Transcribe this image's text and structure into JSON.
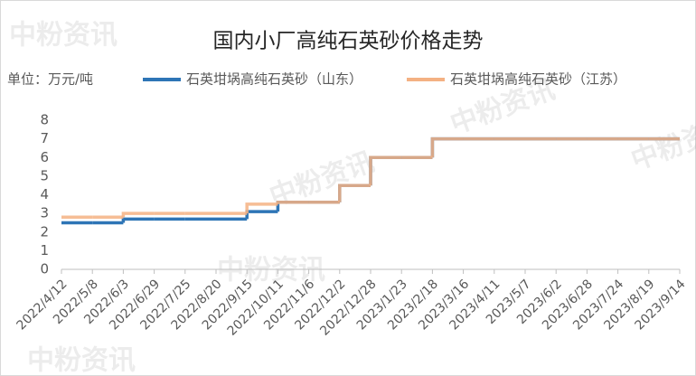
{
  "chart_data": {
    "type": "step-line",
    "title": "国内小厂高纯石英砂价格走势",
    "unit_label": "单位：万元/吨",
    "watermark": "中粉资讯",
    "categories": [
      "2022/4/12",
      "2022/5/8",
      "2022/6/3",
      "2022/6/29",
      "2022/7/25",
      "2022/8/20",
      "2022/9/15",
      "2022/10/11",
      "2022/11/6",
      "2022/12/2",
      "2022/12/28",
      "2023/1/23",
      "2023/2/18",
      "2023/3/16",
      "2023/4/11",
      "2023/5/7",
      "2023/6/2",
      "2023/6/28",
      "2023/7/24",
      "2023/8/19",
      "2023/9/14"
    ],
    "series": [
      {
        "name": "石英坩埚高纯石英砂（山东）",
        "color": "#2e75b6",
        "values": [
          2.5,
          2.5,
          2.7,
          2.7,
          2.7,
          2.7,
          3.1,
          3.6,
          3.6,
          4.5,
          6,
          6,
          7,
          7,
          7,
          7,
          7,
          7,
          7,
          7,
          7
        ]
      },
      {
        "name": "石英坩埚高纯石英砂（江苏）",
        "color": "#f4b183",
        "values": [
          2.8,
          2.8,
          3.0,
          3.0,
          3.0,
          3.0,
          3.5,
          3.6,
          3.6,
          4.5,
          6,
          6,
          7,
          7,
          7,
          7,
          7,
          7,
          7,
          7,
          7
        ]
      }
    ],
    "ylim": [
      0,
      8
    ],
    "yticks": [
      0,
      1,
      2,
      3,
      4,
      5,
      6,
      7,
      8
    ],
    "grid": false
  }
}
